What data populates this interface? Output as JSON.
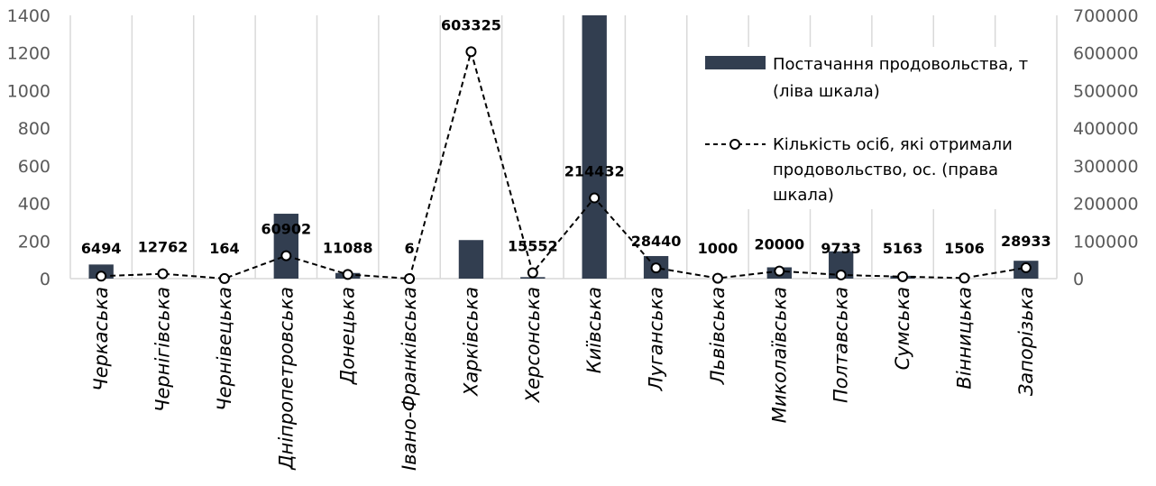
{
  "chart_data": {
    "type": "bar+line",
    "categories": [
      "Черкаська",
      "Чернігівська",
      "Чернівецька",
      "Дніпропетровська",
      "Донецька",
      "Івано-Франківська",
      "Харківська",
      "Херсонська",
      "Київська",
      "Луганська",
      "Львівська",
      "Миколаївська",
      "Полтавська",
      "Сумська",
      "Вінницька",
      "Запорізька"
    ],
    "series": [
      {
        "name": "Постачання продовольства, т (ліва шкала)",
        "type": "bar",
        "axis": "left",
        "color": "#323e50",
        "values": [
          75,
          0,
          0,
          345,
          30,
          0,
          205,
          8,
          1400,
          120,
          0,
          60,
          145,
          15,
          0,
          95
        ]
      },
      {
        "name": "Кількість осіб, які отримали продовольство, ос. (права шкала)",
        "type": "line",
        "axis": "right",
        "color": "#000000",
        "line_style": "dashed",
        "marker": "open-circle",
        "values": [
          6494,
          12762,
          164,
          60902,
          11088,
          6,
          603325,
          15552,
          214432,
          28440,
          1000,
          20000,
          9733,
          5163,
          1506,
          28933
        ],
        "data_labels": [
          "6494",
          "12762",
          "164",
          "60902",
          "11088",
          "6",
          "603325",
          "15552",
          "214432",
          "28440",
          "1000",
          "20000",
          "9733",
          "5163",
          "1506",
          "28933"
        ]
      }
    ],
    "left_axis": {
      "min": 0,
      "max": 1400,
      "ticks": [
        "0",
        "200",
        "400",
        "600",
        "800",
        "1000",
        "1200",
        "1400"
      ]
    },
    "right_axis": {
      "min": 0,
      "max": 700000,
      "ticks": [
        "0",
        "100000",
        "200000",
        "300000",
        "400000",
        "500000",
        "600000",
        "700000"
      ]
    },
    "grid": "vertical",
    "legend": {
      "position": "top-right",
      "entries": [
        {
          "lines": [
            "Постачання продовольства, т",
            "(ліва шкала)"
          ]
        },
        {
          "lines": [
            "Кількість осіб, які отримали",
            "продовольство, ос. (права",
            "шкала)"
          ]
        }
      ]
    }
  }
}
